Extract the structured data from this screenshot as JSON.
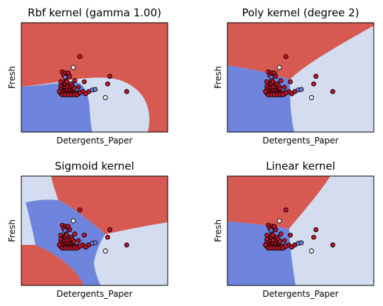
{
  "chart_data": [
    {
      "type": "scatter",
      "title": "Rbf kernel (gamma 1.00)",
      "xlabel": "Detergents_Paper",
      "ylabel": "Fresh",
      "kernel": "rbf",
      "xlim": [
        0,
        1
      ],
      "ylim": [
        0,
        1
      ],
      "grid": false,
      "ticks_shown": false,
      "region_colors": [
        "#d65a52",
        "#6f85dd",
        "#d4ddef"
      ]
    },
    {
      "type": "scatter",
      "title": "Poly kernel (degree 2)",
      "xlabel": "Detergents_Paper",
      "ylabel": "Fresh",
      "kernel": "poly",
      "xlim": [
        0,
        1
      ],
      "ylim": [
        0,
        1
      ],
      "grid": false,
      "ticks_shown": false,
      "region_colors": [
        "#d65a52",
        "#6f85dd",
        "#d4ddef"
      ]
    },
    {
      "type": "scatter",
      "title": "Sigmoid kernel",
      "xlabel": "Detergents_Paper",
      "ylabel": "Fresh",
      "kernel": "sigmoid",
      "xlim": [
        0,
        1
      ],
      "ylim": [
        0,
        1
      ],
      "grid": false,
      "ticks_shown": false,
      "region_colors": [
        "#d65a52",
        "#6f85dd",
        "#d4ddef"
      ]
    },
    {
      "type": "scatter",
      "title": "Linear kernel",
      "xlabel": "Detergents_Paper",
      "ylabel": "Fresh",
      "kernel": "linear",
      "xlim": [
        0,
        1
      ],
      "ylim": [
        0,
        1
      ],
      "grid": false,
      "ticks_shown": false,
      "region_colors": [
        "#d65a52",
        "#6f85dd",
        "#d4ddef"
      ]
    }
  ],
  "points": {
    "colors": {
      "red": "#c0142a",
      "blue": "#6f7ed6",
      "white": "#f2f2f2"
    },
    "edge_color": "#000000",
    "data": [
      {
        "x": 0.4,
        "y": 0.69,
        "c": "red"
      },
      {
        "x": 0.355,
        "y": 0.59,
        "c": "white"
      },
      {
        "x": 0.605,
        "y": 0.51,
        "c": "red"
      },
      {
        "x": 0.59,
        "y": 0.44,
        "c": "red"
      },
      {
        "x": 0.72,
        "y": 0.37,
        "c": "red"
      },
      {
        "x": 0.575,
        "y": 0.315,
        "c": "white"
      },
      {
        "x": 0.43,
        "y": 0.46,
        "c": "red"
      },
      {
        "x": 0.33,
        "y": 0.51,
        "c": "red"
      },
      {
        "x": 0.365,
        "y": 0.47,
        "c": "red"
      },
      {
        "x": 0.39,
        "y": 0.41,
        "c": "red"
      },
      {
        "x": 0.375,
        "y": 0.39,
        "c": "blue"
      },
      {
        "x": 0.42,
        "y": 0.37,
        "c": "red"
      },
      {
        "x": 0.46,
        "y": 0.37,
        "c": "red"
      },
      {
        "x": 0.485,
        "y": 0.385,
        "c": "blue"
      },
      {
        "x": 0.505,
        "y": 0.39,
        "c": "blue"
      },
      {
        "x": 0.44,
        "y": 0.35,
        "c": "red"
      },
      {
        "x": 0.39,
        "y": 0.35,
        "c": "red"
      },
      {
        "x": 0.28,
        "y": 0.55,
        "c": "red"
      },
      {
        "x": 0.3,
        "y": 0.54,
        "c": "red"
      },
      {
        "x": 0.32,
        "y": 0.54,
        "c": "red"
      },
      {
        "x": 0.29,
        "y": 0.52,
        "c": "red"
      },
      {
        "x": 0.3,
        "y": 0.5,
        "c": "blue"
      },
      {
        "x": 0.305,
        "y": 0.47,
        "c": "red"
      },
      {
        "x": 0.28,
        "y": 0.44,
        "c": "red"
      },
      {
        "x": 0.27,
        "y": 0.42,
        "c": "red"
      },
      {
        "x": 0.3,
        "y": 0.44,
        "c": "red"
      },
      {
        "x": 0.32,
        "y": 0.43,
        "c": "red"
      },
      {
        "x": 0.34,
        "y": 0.44,
        "c": "red"
      },
      {
        "x": 0.33,
        "y": 0.41,
        "c": "red"
      },
      {
        "x": 0.35,
        "y": 0.42,
        "c": "red"
      },
      {
        "x": 0.31,
        "y": 0.41,
        "c": "red"
      },
      {
        "x": 0.29,
        "y": 0.4,
        "c": "red"
      },
      {
        "x": 0.27,
        "y": 0.39,
        "c": "red"
      },
      {
        "x": 0.29,
        "y": 0.38,
        "c": "red"
      },
      {
        "x": 0.31,
        "y": 0.38,
        "c": "red"
      },
      {
        "x": 0.33,
        "y": 0.38,
        "c": "red"
      },
      {
        "x": 0.35,
        "y": 0.38,
        "c": "red"
      },
      {
        "x": 0.36,
        "y": 0.4,
        "c": "red"
      },
      {
        "x": 0.28,
        "y": 0.37,
        "c": "red"
      },
      {
        "x": 0.3,
        "y": 0.36,
        "c": "red"
      },
      {
        "x": 0.32,
        "y": 0.36,
        "c": "red"
      },
      {
        "x": 0.34,
        "y": 0.36,
        "c": "red"
      },
      {
        "x": 0.36,
        "y": 0.36,
        "c": "red"
      },
      {
        "x": 0.27,
        "y": 0.355,
        "c": "red"
      },
      {
        "x": 0.29,
        "y": 0.35,
        "c": "red"
      },
      {
        "x": 0.31,
        "y": 0.35,
        "c": "red"
      },
      {
        "x": 0.33,
        "y": 0.35,
        "c": "red"
      },
      {
        "x": 0.35,
        "y": 0.35,
        "c": "red"
      },
      {
        "x": 0.37,
        "y": 0.355,
        "c": "red"
      },
      {
        "x": 0.28,
        "y": 0.34,
        "c": "red"
      },
      {
        "x": 0.3,
        "y": 0.34,
        "c": "red"
      },
      {
        "x": 0.32,
        "y": 0.34,
        "c": "red"
      },
      {
        "x": 0.34,
        "y": 0.34,
        "c": "red"
      },
      {
        "x": 0.36,
        "y": 0.34,
        "c": "red"
      },
      {
        "x": 0.38,
        "y": 0.34,
        "c": "red"
      },
      {
        "x": 0.26,
        "y": 0.37,
        "c": "red"
      },
      {
        "x": 0.4,
        "y": 0.36,
        "c": "red"
      },
      {
        "x": 0.31,
        "y": 0.46,
        "c": "red"
      },
      {
        "x": 0.27,
        "y": 0.46,
        "c": "red"
      }
    ]
  }
}
